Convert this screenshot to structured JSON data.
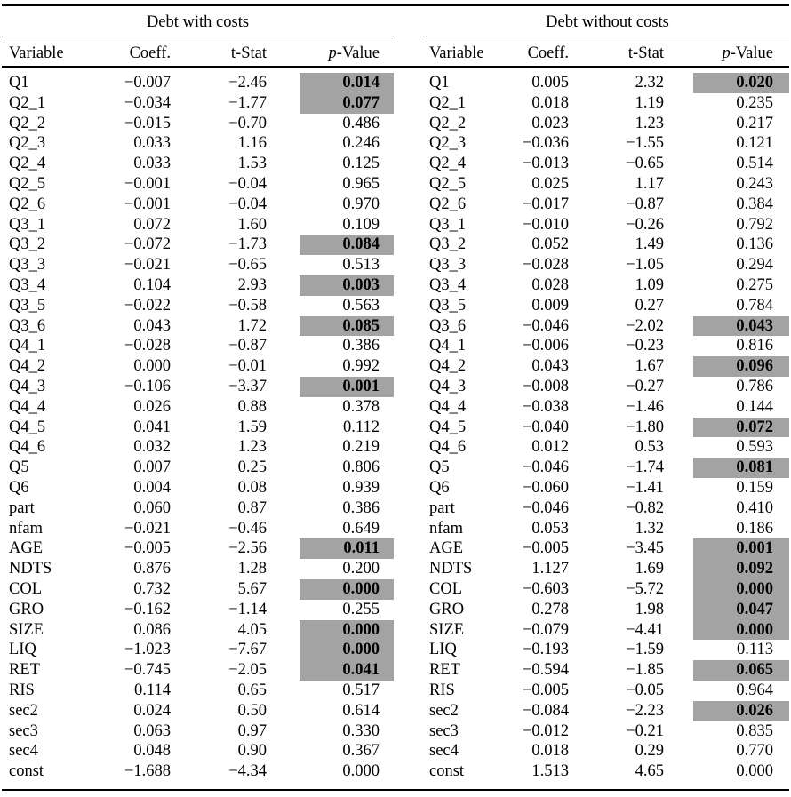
{
  "highlight_color": "#a3a3a3",
  "table_columns": {
    "variable": "Variable",
    "coeff": "Coeff.",
    "t_stat": "t-Stat",
    "p_value_prefix": "p",
    "p_value_suffix": "-Value"
  },
  "tables": [
    {
      "title": "Debt with costs",
      "rows": [
        [
          "Q1",
          "−0.007",
          "−2.46",
          "0.014",
          true
        ],
        [
          "Q2_1",
          "−0.034",
          "−1.77",
          "0.077",
          true
        ],
        [
          "Q2_2",
          "−0.015",
          "−0.70",
          "0.486",
          false
        ],
        [
          "Q2_3",
          "0.033",
          "1.16",
          "0.246",
          false
        ],
        [
          "Q2_4",
          "0.033",
          "1.53",
          "0.125",
          false
        ],
        [
          "Q2_5",
          "−0.001",
          "−0.04",
          "0.965",
          false
        ],
        [
          "Q2_6",
          "−0.001",
          "−0.04",
          "0.970",
          false
        ],
        [
          "Q3_1",
          "0.072",
          "1.60",
          "0.109",
          false
        ],
        [
          "Q3_2",
          "−0.072",
          "−1.73",
          "0.084",
          true
        ],
        [
          "Q3_3",
          "−0.021",
          "−0.65",
          "0.513",
          false
        ],
        [
          "Q3_4",
          "0.104",
          "2.93",
          "0.003",
          true
        ],
        [
          "Q3_5",
          "−0.022",
          "−0.58",
          "0.563",
          false
        ],
        [
          "Q3_6",
          "0.043",
          "1.72",
          "0.085",
          true
        ],
        [
          "Q4_1",
          "−0.028",
          "−0.87",
          "0.386",
          false
        ],
        [
          "Q4_2",
          "0.000",
          "−0.01",
          "0.992",
          false
        ],
        [
          "Q4_3",
          "−0.106",
          "−3.37",
          "0.001",
          true
        ],
        [
          "Q4_4",
          "0.026",
          "0.88",
          "0.378",
          false
        ],
        [
          "Q4_5",
          "0.041",
          "1.59",
          "0.112",
          false
        ],
        [
          "Q4_6",
          "0.032",
          "1.23",
          "0.219",
          false
        ],
        [
          "Q5",
          "0.007",
          "0.25",
          "0.806",
          false
        ],
        [
          "Q6",
          "0.004",
          "0.08",
          "0.939",
          false
        ],
        [
          "part",
          "0.060",
          "0.87",
          "0.386",
          false
        ],
        [
          "nfam",
          "−0.021",
          "−0.46",
          "0.649",
          false
        ],
        [
          "AGE",
          "−0.005",
          "−2.56",
          "0.011",
          true
        ],
        [
          "NDTS",
          "0.876",
          "1.28",
          "0.200",
          false
        ],
        [
          "COL",
          "0.732",
          "5.67",
          "0.000",
          true
        ],
        [
          "GRO",
          "−0.162",
          "−1.14",
          "0.255",
          false
        ],
        [
          "SIZE",
          "0.086",
          "4.05",
          "0.000",
          true
        ],
        [
          "LIQ",
          "−1.023",
          "−7.67",
          "0.000",
          true
        ],
        [
          "RET",
          "−0.745",
          "−2.05",
          "0.041",
          true
        ],
        [
          "RIS",
          "0.114",
          "0.65",
          "0.517",
          false
        ],
        [
          "sec2",
          "0.024",
          "0.50",
          "0.614",
          false
        ],
        [
          "sec3",
          "0.063",
          "0.97",
          "0.330",
          false
        ],
        [
          "sec4",
          "0.048",
          "0.90",
          "0.367",
          false
        ],
        [
          "const",
          "−1.688",
          "−4.34",
          "0.000",
          false
        ]
      ]
    },
    {
      "title": "Debt without costs",
      "rows": [
        [
          "Q1",
          "0.005",
          "2.32",
          "0.020",
          true
        ],
        [
          "Q2_1",
          "0.018",
          "1.19",
          "0.235",
          false
        ],
        [
          "Q2_2",
          "0.023",
          "1.23",
          "0.217",
          false
        ],
        [
          "Q2_3",
          "−0.036",
          "−1.55",
          "0.121",
          false
        ],
        [
          "Q2_4",
          "−0.013",
          "−0.65",
          "0.514",
          false
        ],
        [
          "Q2_5",
          "0.025",
          "1.17",
          "0.243",
          false
        ],
        [
          "Q2_6",
          "−0.017",
          "−0.87",
          "0.384",
          false
        ],
        [
          "Q3_1",
          "−0.010",
          "−0.26",
          "0.792",
          false
        ],
        [
          "Q3_2",
          "0.052",
          "1.49",
          "0.136",
          false
        ],
        [
          "Q3_3",
          "−0.028",
          "−1.05",
          "0.294",
          false
        ],
        [
          "Q3_4",
          "0.028",
          "1.09",
          "0.275",
          false
        ],
        [
          "Q3_5",
          "0.009",
          "0.27",
          "0.784",
          false
        ],
        [
          "Q3_6",
          "−0.046",
          "−2.02",
          "0.043",
          true
        ],
        [
          "Q4_1",
          "−0.006",
          "−0.23",
          "0.816",
          false
        ],
        [
          "Q4_2",
          "0.043",
          "1.67",
          "0.096",
          true
        ],
        [
          "Q4_3",
          "−0.008",
          "−0.27",
          "0.786",
          false
        ],
        [
          "Q4_4",
          "−0.038",
          "−1.46",
          "0.144",
          false
        ],
        [
          "Q4_5",
          "−0.040",
          "−1.80",
          "0.072",
          true
        ],
        [
          "Q4_6",
          "0.012",
          "0.53",
          "0.593",
          false
        ],
        [
          "Q5",
          "−0.046",
          "−1.74",
          "0.081",
          true
        ],
        [
          "Q6",
          "−0.060",
          "−1.41",
          "0.159",
          false
        ],
        [
          "part",
          "−0.046",
          "−0.82",
          "0.410",
          false
        ],
        [
          "nfam",
          "0.053",
          "1.32",
          "0.186",
          false
        ],
        [
          "AGE",
          "−0.005",
          "−3.45",
          "0.001",
          true
        ],
        [
          "NDTS",
          "1.127",
          "1.69",
          "0.092",
          true
        ],
        [
          "COL",
          "−0.603",
          "−5.72",
          "0.000",
          true
        ],
        [
          "GRO",
          "0.278",
          "1.98",
          "0.047",
          true
        ],
        [
          "SIZE",
          "−0.079",
          "−4.41",
          "0.000",
          true
        ],
        [
          "LIQ",
          "−0.193",
          "−1.59",
          "0.113",
          false
        ],
        [
          "RET",
          "−0.594",
          "−1.85",
          "0.065",
          true
        ],
        [
          "RIS",
          "−0.005",
          "−0.05",
          "0.964",
          false
        ],
        [
          "sec2",
          "−0.084",
          "−2.23",
          "0.026",
          true
        ],
        [
          "sec3",
          "−0.012",
          "−0.21",
          "0.835",
          false
        ],
        [
          "sec4",
          "0.018",
          "0.29",
          "0.770",
          false
        ],
        [
          "const",
          "1.513",
          "4.65",
          "0.000",
          false
        ]
      ]
    }
  ]
}
